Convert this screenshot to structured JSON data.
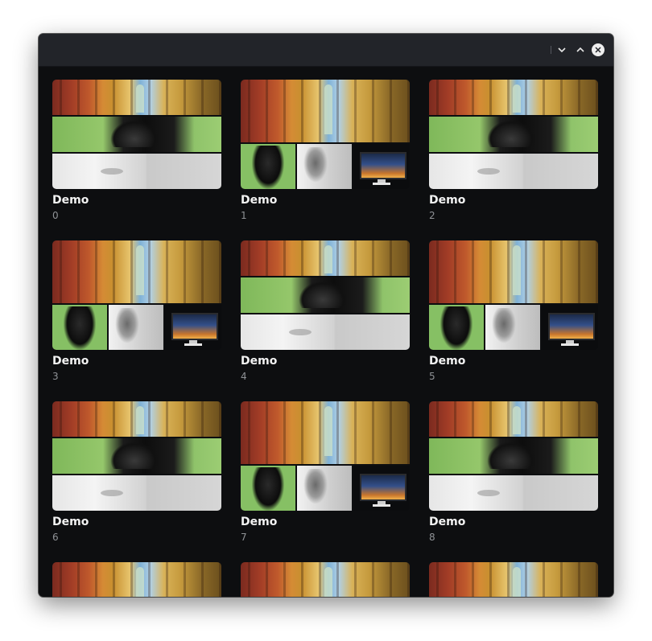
{
  "window": {
    "controls": {
      "minimize_icon": "chevron-down-icon",
      "maximize_icon": "chevron-up-icon",
      "close_icon": "close-icon"
    }
  },
  "grid": {
    "items": [
      {
        "title": "Demo",
        "subtitle": "0",
        "layout": "mosaic"
      },
      {
        "title": "Demo",
        "subtitle": "1",
        "layout": "split"
      },
      {
        "title": "Demo",
        "subtitle": "2",
        "layout": "mosaic"
      },
      {
        "title": "Demo",
        "subtitle": "3",
        "layout": "split"
      },
      {
        "title": "Demo",
        "subtitle": "4",
        "layout": "mosaic"
      },
      {
        "title": "Demo",
        "subtitle": "5",
        "layout": "split"
      },
      {
        "title": "Demo",
        "subtitle": "6",
        "layout": "mosaic"
      },
      {
        "title": "Demo",
        "subtitle": "7",
        "layout": "split"
      },
      {
        "title": "Demo",
        "subtitle": "8",
        "layout": "mosaic"
      },
      {
        "title": "",
        "subtitle": "",
        "layout": "partial"
      },
      {
        "title": "",
        "subtitle": "",
        "layout": "partial"
      },
      {
        "title": "",
        "subtitle": "",
        "layout": "partial"
      }
    ]
  },
  "colors": {
    "background": "#0d0e10",
    "titlebar": "#222429",
    "title_text": "#f2f2f2",
    "subtitle_text": "#8f9296"
  }
}
